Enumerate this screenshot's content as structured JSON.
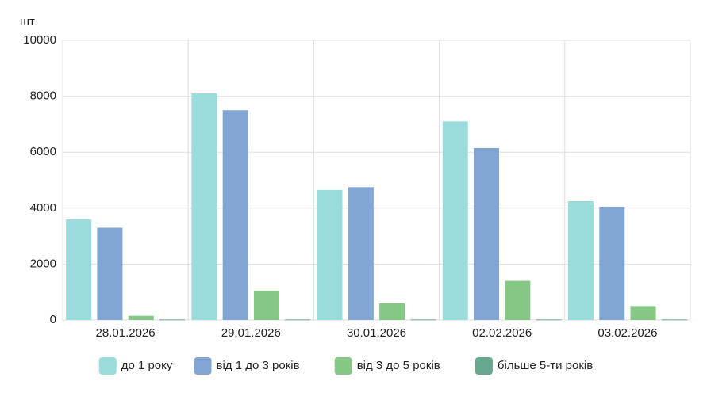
{
  "chart_data": {
    "type": "bar",
    "y_label": "шт",
    "categories": [
      "28.01.2026",
      "29.01.2026",
      "30.01.2026",
      "02.02.2026",
      "03.02.2026"
    ],
    "series": [
      {
        "name": "до 1 року",
        "color": "#99dcdb",
        "values": [
          3600,
          8100,
          4650,
          7100,
          4250
        ]
      },
      {
        "name": "від 1 до 3 років",
        "color": "#82a6d4",
        "values": [
          3300,
          7500,
          4750,
          6150,
          4050
        ]
      },
      {
        "name": "від 3 до 5 років",
        "color": "#85c785",
        "values": [
          150,
          1050,
          600,
          1400,
          500
        ]
      },
      {
        "name": "більше 5-ти років",
        "color": "#66a88e",
        "values": [
          20,
          20,
          20,
          20,
          20
        ]
      }
    ],
    "ylim": [
      0,
      10000
    ],
    "yticks": [
      0,
      2000,
      4000,
      6000,
      8000,
      10000
    ],
    "grid": true,
    "legend": "bottom"
  }
}
